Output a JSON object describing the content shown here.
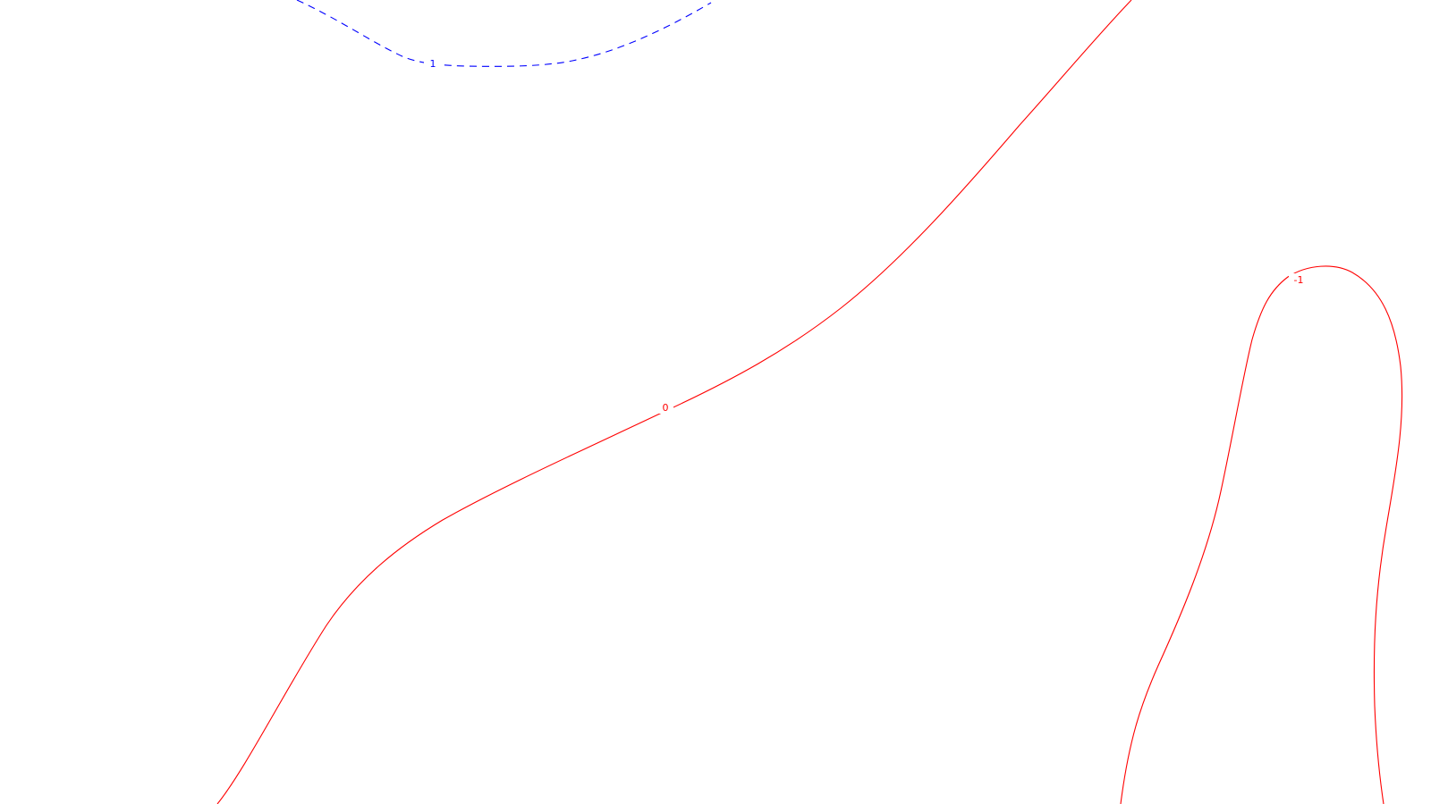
{
  "contours": [
    {
      "id": "dashed-blue-1",
      "label": "1",
      "color": "#0000ff",
      "line_style": "dashed"
    },
    {
      "id": "solid-red-0",
      "label": "0",
      "color": "#ff0000",
      "line_style": "solid"
    },
    {
      "id": "solid-red-minus-1",
      "label": "-1",
      "color": "#ff0000",
      "line_style": "solid"
    }
  ],
  "background_color": "#ffffff"
}
